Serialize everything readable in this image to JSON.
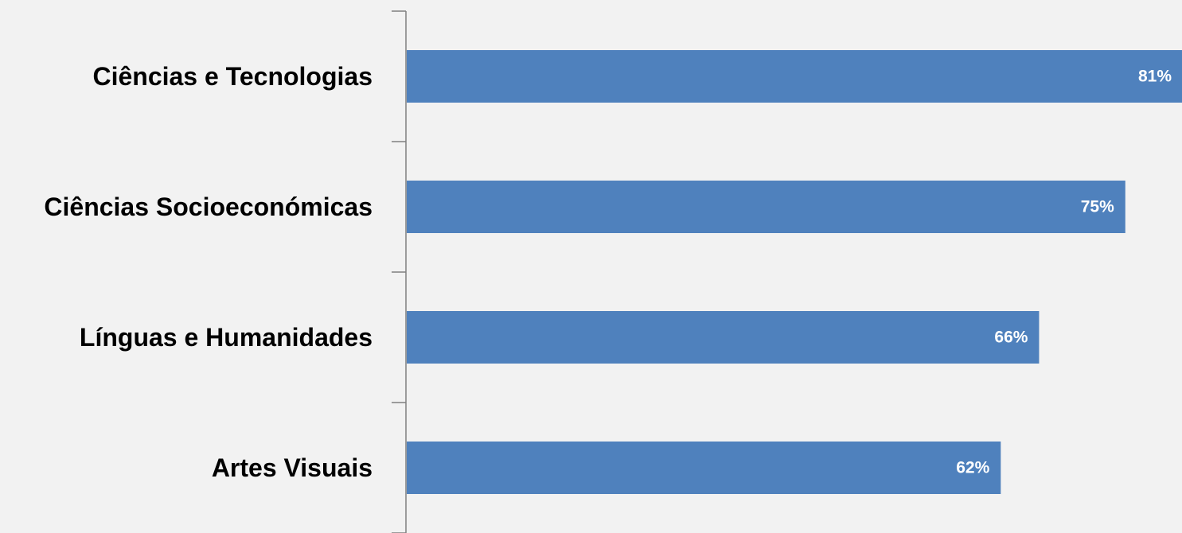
{
  "chart_data": {
    "type": "bar",
    "orientation": "horizontal",
    "categories": [
      "Ciências e Tecnologias",
      "Ciências Socioeconómicas",
      "Línguas e Humanidades",
      "Artes Visuais"
    ],
    "values": [
      81,
      75,
      66,
      62
    ],
    "value_labels": [
      "81%",
      "75%",
      "66%",
      "62%"
    ],
    "unit": "%",
    "xlim": [
      0,
      81
    ],
    "grid": false,
    "legend": "none",
    "colors": {
      "bar": "#4f81bd",
      "value_label": "#ffffff",
      "category_label": "#000000",
      "axis": "#7f7f7f",
      "background": "#f2f2f2"
    }
  }
}
